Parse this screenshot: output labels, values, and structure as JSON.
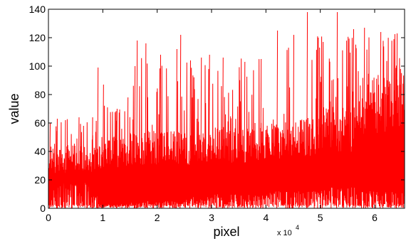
{
  "chart_data": {
    "type": "line",
    "title": "",
    "xlabel": "pixel",
    "ylabel": "value",
    "x_multiplier_label": "x 10",
    "x_multiplier_exponent": "4",
    "xlim": [
      0,
      6.55
    ],
    "ylim": [
      0,
      140
    ],
    "x_ticks": [
      0,
      1,
      2,
      3,
      4,
      5,
      6
    ],
    "y_ticks": [
      0,
      20,
      40,
      60,
      80,
      100,
      120,
      140
    ],
    "grid": false,
    "line_color": "#ff0000",
    "series": [
      {
        "x_units": "x 10^4 pixel",
        "segments": [
          {
            "x_start": 0.0,
            "x_end": 0.93,
            "min": 0,
            "low": 18,
            "base_high": 45,
            "peak": 63,
            "peak_spikes": [
              {
                "x": 0.02,
                "v": 60
              },
              {
                "x": 0.15,
                "v": 63
              },
              {
                "x": 0.3,
                "v": 62
              },
              {
                "x": 0.55,
                "v": 64
              },
              {
                "x": 0.8,
                "v": 64
              }
            ]
          },
          {
            "x_start": 0.93,
            "x_end": 1.5,
            "min": 0,
            "low": 2,
            "base_high": 50,
            "peak": 75,
            "peak_spikes": [
              {
                "x": 0.9,
                "v": 99
              },
              {
                "x": 1.0,
                "v": 87
              },
              {
                "x": 1.25,
                "v": 70
              },
              {
                "x": 1.45,
                "v": 78
              }
            ]
          },
          {
            "x_start": 1.5,
            "x_end": 2.5,
            "min": 0,
            "low": 5,
            "base_high": 55,
            "peak": 110,
            "peak_spikes": [
              {
                "x": 1.58,
                "v": 100
              },
              {
                "x": 1.62,
                "v": 118
              },
              {
                "x": 1.78,
                "v": 116
              },
              {
                "x": 2.05,
                "v": 108
              },
              {
                "x": 2.35,
                "v": 112
              },
              {
                "x": 2.42,
                "v": 122
              }
            ]
          },
          {
            "x_start": 2.5,
            "x_end": 3.0,
            "min": 0,
            "low": 8,
            "base_high": 55,
            "peak": 108,
            "peak_spikes": [
              {
                "x": 2.6,
                "v": 104
              },
              {
                "x": 2.8,
                "v": 106
              },
              {
                "x": 2.95,
                "v": 108
              }
            ]
          },
          {
            "x_start": 3.0,
            "x_end": 4.0,
            "min": 0,
            "low": 10,
            "base_high": 58,
            "peak": 106,
            "peak_spikes": [
              {
                "x": 3.2,
                "v": 106
              },
              {
                "x": 3.6,
                "v": 103
              },
              {
                "x": 3.9,
                "v": 105
              }
            ]
          },
          {
            "x_start": 4.0,
            "x_end": 5.0,
            "min": 0,
            "low": 12,
            "base_high": 63,
            "peak": 122,
            "peak_spikes": [
              {
                "x": 4.2,
                "v": 125
              },
              {
                "x": 4.5,
                "v": 122
              },
              {
                "x": 4.75,
                "v": 138
              },
              {
                "x": 4.95,
                "v": 120
              }
            ]
          },
          {
            "x_start": 5.0,
            "x_end": 5.7,
            "min": 0,
            "low": 15,
            "base_high": 72,
            "peak": 122,
            "peak_spikes": [
              {
                "x": 5.3,
                "v": 138
              },
              {
                "x": 5.6,
                "v": 126
              }
            ]
          },
          {
            "x_start": 5.7,
            "x_end": 6.55,
            "min": 0,
            "low": 12,
            "base_high": 95,
            "peak": 124,
            "peak_spikes": [
              {
                "x": 5.8,
                "v": 127
              },
              {
                "x": 6.1,
                "v": 124
              },
              {
                "x": 6.4,
                "v": 123
              }
            ]
          }
        ]
      }
    ]
  }
}
